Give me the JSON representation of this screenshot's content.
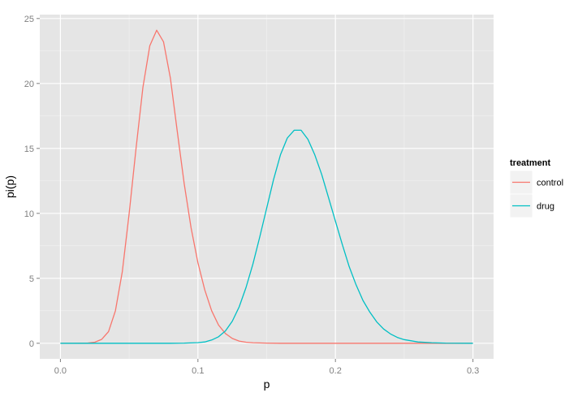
{
  "chart_data": {
    "type": "line",
    "title": "",
    "xlabel": "p",
    "ylabel": "pi(p)",
    "xlim": [
      -0.015,
      0.315
    ],
    "ylim": [
      -1.2,
      25.3
    ],
    "x_ticks": [
      0.0,
      0.1,
      0.2,
      0.3
    ],
    "x_tick_labels": [
      "0.0",
      "0.1",
      "0.2",
      "0.3"
    ],
    "y_ticks": [
      0,
      5,
      10,
      15,
      20,
      25
    ],
    "y_tick_labels": [
      "0",
      "5",
      "10",
      "15",
      "20",
      "25"
    ],
    "grid": true,
    "legend": {
      "title": "treatment",
      "position": "right"
    },
    "series": [
      {
        "name": "control",
        "color": "#F8766D",
        "x": [
          0.0,
          0.01,
          0.02,
          0.025,
          0.03,
          0.035,
          0.04,
          0.045,
          0.05,
          0.055,
          0.06,
          0.065,
          0.07,
          0.075,
          0.08,
          0.085,
          0.09,
          0.095,
          0.1,
          0.105,
          0.11,
          0.115,
          0.12,
          0.125,
          0.13,
          0.135,
          0.14,
          0.15,
          0.16,
          0.18,
          0.2,
          0.25,
          0.3
        ],
        "y": [
          0,
          0,
          0.02,
          0.08,
          0.3,
          0.9,
          2.5,
          5.5,
          10.0,
          15.0,
          19.7,
          22.9,
          24.1,
          23.2,
          20.4,
          16.3,
          12.3,
          8.9,
          6.2,
          4.1,
          2.5,
          1.4,
          0.75,
          0.37,
          0.17,
          0.08,
          0.04,
          0.01,
          0,
          0,
          0,
          0,
          0
        ]
      },
      {
        "name": "drug",
        "color": "#00BFC4",
        "x": [
          0.0,
          0.08,
          0.09,
          0.1,
          0.105,
          0.11,
          0.115,
          0.12,
          0.125,
          0.13,
          0.135,
          0.14,
          0.145,
          0.15,
          0.155,
          0.16,
          0.165,
          0.17,
          0.175,
          0.18,
          0.185,
          0.19,
          0.195,
          0.2,
          0.205,
          0.21,
          0.215,
          0.22,
          0.225,
          0.23,
          0.235,
          0.24,
          0.245,
          0.25,
          0.26,
          0.27,
          0.28,
          0.3
        ],
        "y": [
          0,
          0,
          0.01,
          0.05,
          0.1,
          0.25,
          0.5,
          0.95,
          1.7,
          2.8,
          4.3,
          6.1,
          8.2,
          10.4,
          12.6,
          14.5,
          15.8,
          16.4,
          16.4,
          15.7,
          14.5,
          13.0,
          11.2,
          9.4,
          7.6,
          5.9,
          4.5,
          3.3,
          2.4,
          1.65,
          1.1,
          0.72,
          0.45,
          0.28,
          0.1,
          0.04,
          0.01,
          0
        ]
      }
    ]
  }
}
